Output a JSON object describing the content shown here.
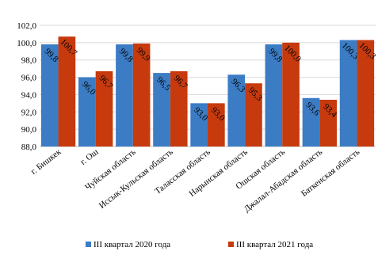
{
  "chart_data": {
    "type": "bar",
    "categories": [
      "г. Бишкек",
      "г. Ош",
      "Чуйская область",
      "Иссык-Кульская область",
      "Таласская область",
      "Нарынская область",
      "Ошская область",
      "Джалал-Абадская область",
      "Баткенская область"
    ],
    "series": [
      {
        "name": "III квартал 2020 года",
        "color": "#3b7cc4",
        "values": [
          99.8,
          96.0,
          99.8,
          96.5,
          93.0,
          96.3,
          99.8,
          93.6,
          100.3
        ],
        "value_labels": [
          "99,8",
          "96,0",
          "99,8",
          "96,5",
          "93,0",
          "96,3",
          "99,8",
          "93,6",
          "100,3"
        ]
      },
      {
        "name": "III квартал 2021 года",
        "color": "#c63a0e",
        "values": [
          100.7,
          96.7,
          99.9,
          96.7,
          93.0,
          95.3,
          100.0,
          93.4,
          100.3
        ],
        "value_labels": [
          "100,7",
          "96,7",
          "99,9",
          "96,7",
          "93,0",
          "95,3",
          "100,0",
          "93,4",
          "100,3"
        ]
      }
    ],
    "ylim": [
      88,
      102
    ],
    "yticks": [
      {
        "value": 88,
        "label": "88,0"
      },
      {
        "value": 90,
        "label": "90,0"
      },
      {
        "value": 92,
        "label": "92,0"
      },
      {
        "value": 94,
        "label": "94,0"
      },
      {
        "value": 96,
        "label": "96,0"
      },
      {
        "value": 98,
        "label": "98,0"
      },
      {
        "value": 100,
        "label": "100,0"
      },
      {
        "value": 102,
        "label": "102,0"
      }
    ],
    "grid": true,
    "legend": "bottom"
  }
}
